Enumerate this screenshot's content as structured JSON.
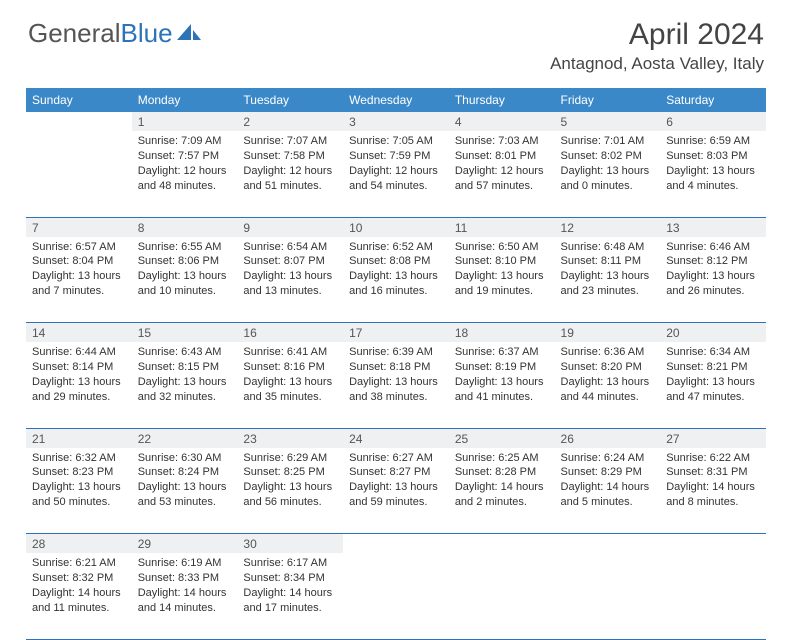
{
  "logo": {
    "part1": "General",
    "part2": "Blue"
  },
  "title": "April 2024",
  "location": "Antagnod, Aosta Valley, Italy",
  "colors": {
    "header_bg": "#3b88c8",
    "header_text": "#ffffff",
    "daynum_bg": "#eef0f2",
    "row_border": "#2d73b8",
    "body_text": "#333333",
    "title_text": "#444444",
    "logo_gray": "#555555",
    "logo_blue": "#2d73b8"
  },
  "typography": {
    "title_fontsize": 30,
    "location_fontsize": 17,
    "dayheader_fontsize": 12,
    "cell_fontsize": 11
  },
  "day_headers": [
    "Sunday",
    "Monday",
    "Tuesday",
    "Wednesday",
    "Thursday",
    "Friday",
    "Saturday"
  ],
  "weeks": [
    {
      "nums": [
        "",
        "1",
        "2",
        "3",
        "4",
        "5",
        "6"
      ],
      "cells": [
        null,
        {
          "sunrise": "Sunrise: 7:09 AM",
          "sunset": "Sunset: 7:57 PM",
          "d1": "Daylight: 12 hours",
          "d2": "and 48 minutes."
        },
        {
          "sunrise": "Sunrise: 7:07 AM",
          "sunset": "Sunset: 7:58 PM",
          "d1": "Daylight: 12 hours",
          "d2": "and 51 minutes."
        },
        {
          "sunrise": "Sunrise: 7:05 AM",
          "sunset": "Sunset: 7:59 PM",
          "d1": "Daylight: 12 hours",
          "d2": "and 54 minutes."
        },
        {
          "sunrise": "Sunrise: 7:03 AM",
          "sunset": "Sunset: 8:01 PM",
          "d1": "Daylight: 12 hours",
          "d2": "and 57 minutes."
        },
        {
          "sunrise": "Sunrise: 7:01 AM",
          "sunset": "Sunset: 8:02 PM",
          "d1": "Daylight: 13 hours",
          "d2": "and 0 minutes."
        },
        {
          "sunrise": "Sunrise: 6:59 AM",
          "sunset": "Sunset: 8:03 PM",
          "d1": "Daylight: 13 hours",
          "d2": "and 4 minutes."
        }
      ]
    },
    {
      "nums": [
        "7",
        "8",
        "9",
        "10",
        "11",
        "12",
        "13"
      ],
      "cells": [
        {
          "sunrise": "Sunrise: 6:57 AM",
          "sunset": "Sunset: 8:04 PM",
          "d1": "Daylight: 13 hours",
          "d2": "and 7 minutes."
        },
        {
          "sunrise": "Sunrise: 6:55 AM",
          "sunset": "Sunset: 8:06 PM",
          "d1": "Daylight: 13 hours",
          "d2": "and 10 minutes."
        },
        {
          "sunrise": "Sunrise: 6:54 AM",
          "sunset": "Sunset: 8:07 PM",
          "d1": "Daylight: 13 hours",
          "d2": "and 13 minutes."
        },
        {
          "sunrise": "Sunrise: 6:52 AM",
          "sunset": "Sunset: 8:08 PM",
          "d1": "Daylight: 13 hours",
          "d2": "and 16 minutes."
        },
        {
          "sunrise": "Sunrise: 6:50 AM",
          "sunset": "Sunset: 8:10 PM",
          "d1": "Daylight: 13 hours",
          "d2": "and 19 minutes."
        },
        {
          "sunrise": "Sunrise: 6:48 AM",
          "sunset": "Sunset: 8:11 PM",
          "d1": "Daylight: 13 hours",
          "d2": "and 23 minutes."
        },
        {
          "sunrise": "Sunrise: 6:46 AM",
          "sunset": "Sunset: 8:12 PM",
          "d1": "Daylight: 13 hours",
          "d2": "and 26 minutes."
        }
      ]
    },
    {
      "nums": [
        "14",
        "15",
        "16",
        "17",
        "18",
        "19",
        "20"
      ],
      "cells": [
        {
          "sunrise": "Sunrise: 6:44 AM",
          "sunset": "Sunset: 8:14 PM",
          "d1": "Daylight: 13 hours",
          "d2": "and 29 minutes."
        },
        {
          "sunrise": "Sunrise: 6:43 AM",
          "sunset": "Sunset: 8:15 PM",
          "d1": "Daylight: 13 hours",
          "d2": "and 32 minutes."
        },
        {
          "sunrise": "Sunrise: 6:41 AM",
          "sunset": "Sunset: 8:16 PM",
          "d1": "Daylight: 13 hours",
          "d2": "and 35 minutes."
        },
        {
          "sunrise": "Sunrise: 6:39 AM",
          "sunset": "Sunset: 8:18 PM",
          "d1": "Daylight: 13 hours",
          "d2": "and 38 minutes."
        },
        {
          "sunrise": "Sunrise: 6:37 AM",
          "sunset": "Sunset: 8:19 PM",
          "d1": "Daylight: 13 hours",
          "d2": "and 41 minutes."
        },
        {
          "sunrise": "Sunrise: 6:36 AM",
          "sunset": "Sunset: 8:20 PM",
          "d1": "Daylight: 13 hours",
          "d2": "and 44 minutes."
        },
        {
          "sunrise": "Sunrise: 6:34 AM",
          "sunset": "Sunset: 8:21 PM",
          "d1": "Daylight: 13 hours",
          "d2": "and 47 minutes."
        }
      ]
    },
    {
      "nums": [
        "21",
        "22",
        "23",
        "24",
        "25",
        "26",
        "27"
      ],
      "cells": [
        {
          "sunrise": "Sunrise: 6:32 AM",
          "sunset": "Sunset: 8:23 PM",
          "d1": "Daylight: 13 hours",
          "d2": "and 50 minutes."
        },
        {
          "sunrise": "Sunrise: 6:30 AM",
          "sunset": "Sunset: 8:24 PM",
          "d1": "Daylight: 13 hours",
          "d2": "and 53 minutes."
        },
        {
          "sunrise": "Sunrise: 6:29 AM",
          "sunset": "Sunset: 8:25 PM",
          "d1": "Daylight: 13 hours",
          "d2": "and 56 minutes."
        },
        {
          "sunrise": "Sunrise: 6:27 AM",
          "sunset": "Sunset: 8:27 PM",
          "d1": "Daylight: 13 hours",
          "d2": "and 59 minutes."
        },
        {
          "sunrise": "Sunrise: 6:25 AM",
          "sunset": "Sunset: 8:28 PM",
          "d1": "Daylight: 14 hours",
          "d2": "and 2 minutes."
        },
        {
          "sunrise": "Sunrise: 6:24 AM",
          "sunset": "Sunset: 8:29 PM",
          "d1": "Daylight: 14 hours",
          "d2": "and 5 minutes."
        },
        {
          "sunrise": "Sunrise: 6:22 AM",
          "sunset": "Sunset: 8:31 PM",
          "d1": "Daylight: 14 hours",
          "d2": "and 8 minutes."
        }
      ]
    },
    {
      "nums": [
        "28",
        "29",
        "30",
        "",
        "",
        "",
        ""
      ],
      "cells": [
        {
          "sunrise": "Sunrise: 6:21 AM",
          "sunset": "Sunset: 8:32 PM",
          "d1": "Daylight: 14 hours",
          "d2": "and 11 minutes."
        },
        {
          "sunrise": "Sunrise: 6:19 AM",
          "sunset": "Sunset: 8:33 PM",
          "d1": "Daylight: 14 hours",
          "d2": "and 14 minutes."
        },
        {
          "sunrise": "Sunrise: 6:17 AM",
          "sunset": "Sunset: 8:34 PM",
          "d1": "Daylight: 14 hours",
          "d2": "and 17 minutes."
        },
        null,
        null,
        null,
        null
      ]
    }
  ]
}
